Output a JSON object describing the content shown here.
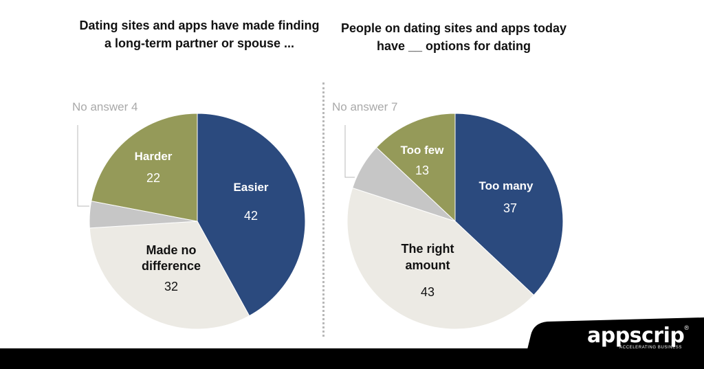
{
  "chart_data": [
    {
      "type": "pie",
      "title": "Dating sites and apps have made finding a long-term partner or spouse ...",
      "slices": [
        {
          "label": "Easier",
          "value": 42,
          "color": "#2b4a7e",
          "text_color": "#ffffff"
        },
        {
          "label": "Made no difference",
          "value": 32,
          "color": "#eceae4",
          "text_color": "#111111"
        },
        {
          "label": "No answer",
          "value": 4,
          "color": "#c6c6c6",
          "text_color": "#a9a9a9"
        },
        {
          "label": "Harder",
          "value": 22,
          "color": "#959a59",
          "text_color": "#ffffff"
        }
      ],
      "no_answer_text": "No answer 4"
    },
    {
      "type": "pie",
      "title": "People on dating sites and apps today have __ options for dating",
      "slices": [
        {
          "label": "Too many",
          "value": 37,
          "color": "#2b4a7e",
          "text_color": "#ffffff"
        },
        {
          "label": "The right amount",
          "value": 43,
          "color": "#eceae4",
          "text_color": "#111111"
        },
        {
          "label": "No answer",
          "value": 7,
          "color": "#c6c6c6",
          "text_color": "#a9a9a9"
        },
        {
          "label": "Too few",
          "value": 13,
          "color": "#959a59",
          "text_color": "#ffffff"
        }
      ],
      "no_answer_text": "No answer 7"
    }
  ],
  "labels": {
    "pie1": {
      "easier": {
        "line1": "Easier",
        "value": "42"
      },
      "no_diff": {
        "line1": "Made no",
        "line2": "difference",
        "value": "32"
      },
      "harder": {
        "line1": "Harder",
        "value": "22"
      }
    },
    "pie2": {
      "too_many": {
        "line1": "Too many",
        "value": "37"
      },
      "right": {
        "line1": "The right",
        "line2": "amount",
        "value": "43"
      },
      "too_few": {
        "line1": "Too few",
        "value": "13"
      }
    }
  },
  "footer": {
    "brand": "appscrip",
    "registered": "®",
    "tagline": "ACCELERATING BUSINESS"
  },
  "colors": {
    "divider": "#b8b8b8",
    "footer": "#000000"
  }
}
